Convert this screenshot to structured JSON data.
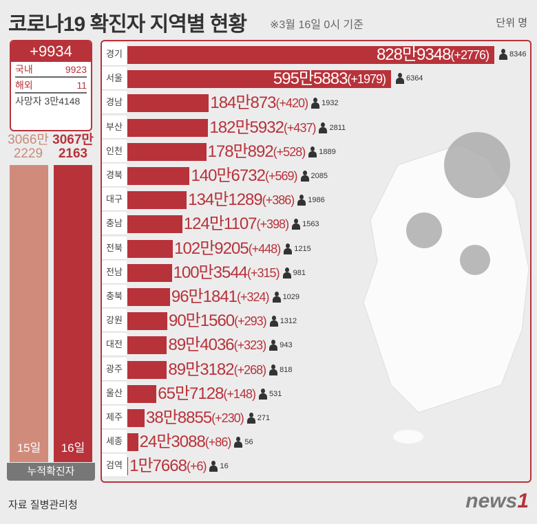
{
  "header": {
    "title": "코로나19 확진자 지역별 현황",
    "subtitle": "※3월 16일 0시 기준",
    "unit": "단위 명"
  },
  "summary": {
    "new_total": "+9934",
    "domestic_label": "국내",
    "domestic": "9923",
    "overseas_label": "해외",
    "overseas": "11",
    "deaths_label": "사망자",
    "deaths": "3만4148"
  },
  "cumulative": {
    "prev": {
      "line1": "3066만",
      "line2": "2229",
      "day": "15일",
      "value": 30662229,
      "color": "#d08b7a"
    },
    "curr": {
      "line1": "3067만",
      "line2": "2163",
      "day": "16일",
      "value": 30672163,
      "color": "#b8323a"
    },
    "footer": "누적확진자"
  },
  "chart_data": {
    "type": "bar",
    "orientation": "horizontal",
    "categories": [
      "경기",
      "서울",
      "경남",
      "부산",
      "인천",
      "경북",
      "대구",
      "충남",
      "전북",
      "전남",
      "충북",
      "강원",
      "대전",
      "광주",
      "울산",
      "제주",
      "세종",
      "검역"
    ],
    "values": [
      8289348,
      5955883,
      1840873,
      1825932,
      1780892,
      1406732,
      1341289,
      1241107,
      1029205,
      1003544,
      961841,
      901560,
      894036,
      893182,
      657128,
      388855,
      243088,
      17668
    ],
    "value_labels": [
      "828만9348",
      "595만5883",
      "184만873",
      "182만5932",
      "178만892",
      "140만6732",
      "134만1289",
      "124만1107",
      "102만9205",
      "100만3544",
      "96만1841",
      "90만1560",
      "89만4036",
      "89만3182",
      "65만7128",
      "38만8855",
      "24만3088",
      "1만7668"
    ],
    "increase_labels": [
      "(+2776)",
      "(+1979)",
      "(+420)",
      "(+437)",
      "(+528)",
      "(+569)",
      "(+386)",
      "(+398)",
      "(+448)",
      "(+315)",
      "(+324)",
      "(+293)",
      "(+323)",
      "(+268)",
      "(+148)",
      "(+230)",
      "(+86)",
      "(+6)"
    ],
    "deaths": [
      "8346",
      "6364",
      "1932",
      "2811",
      "1889",
      "2085",
      "1986",
      "1563",
      "1215",
      "981",
      "1029",
      "1312",
      "943",
      "818",
      "531",
      "271",
      "56",
      "16"
    ],
    "bar_color": "#b8323a",
    "icon": "person-icon"
  },
  "footer": {
    "source": "자료 질병관리청",
    "logo": "news",
    "logo_num": "1"
  }
}
